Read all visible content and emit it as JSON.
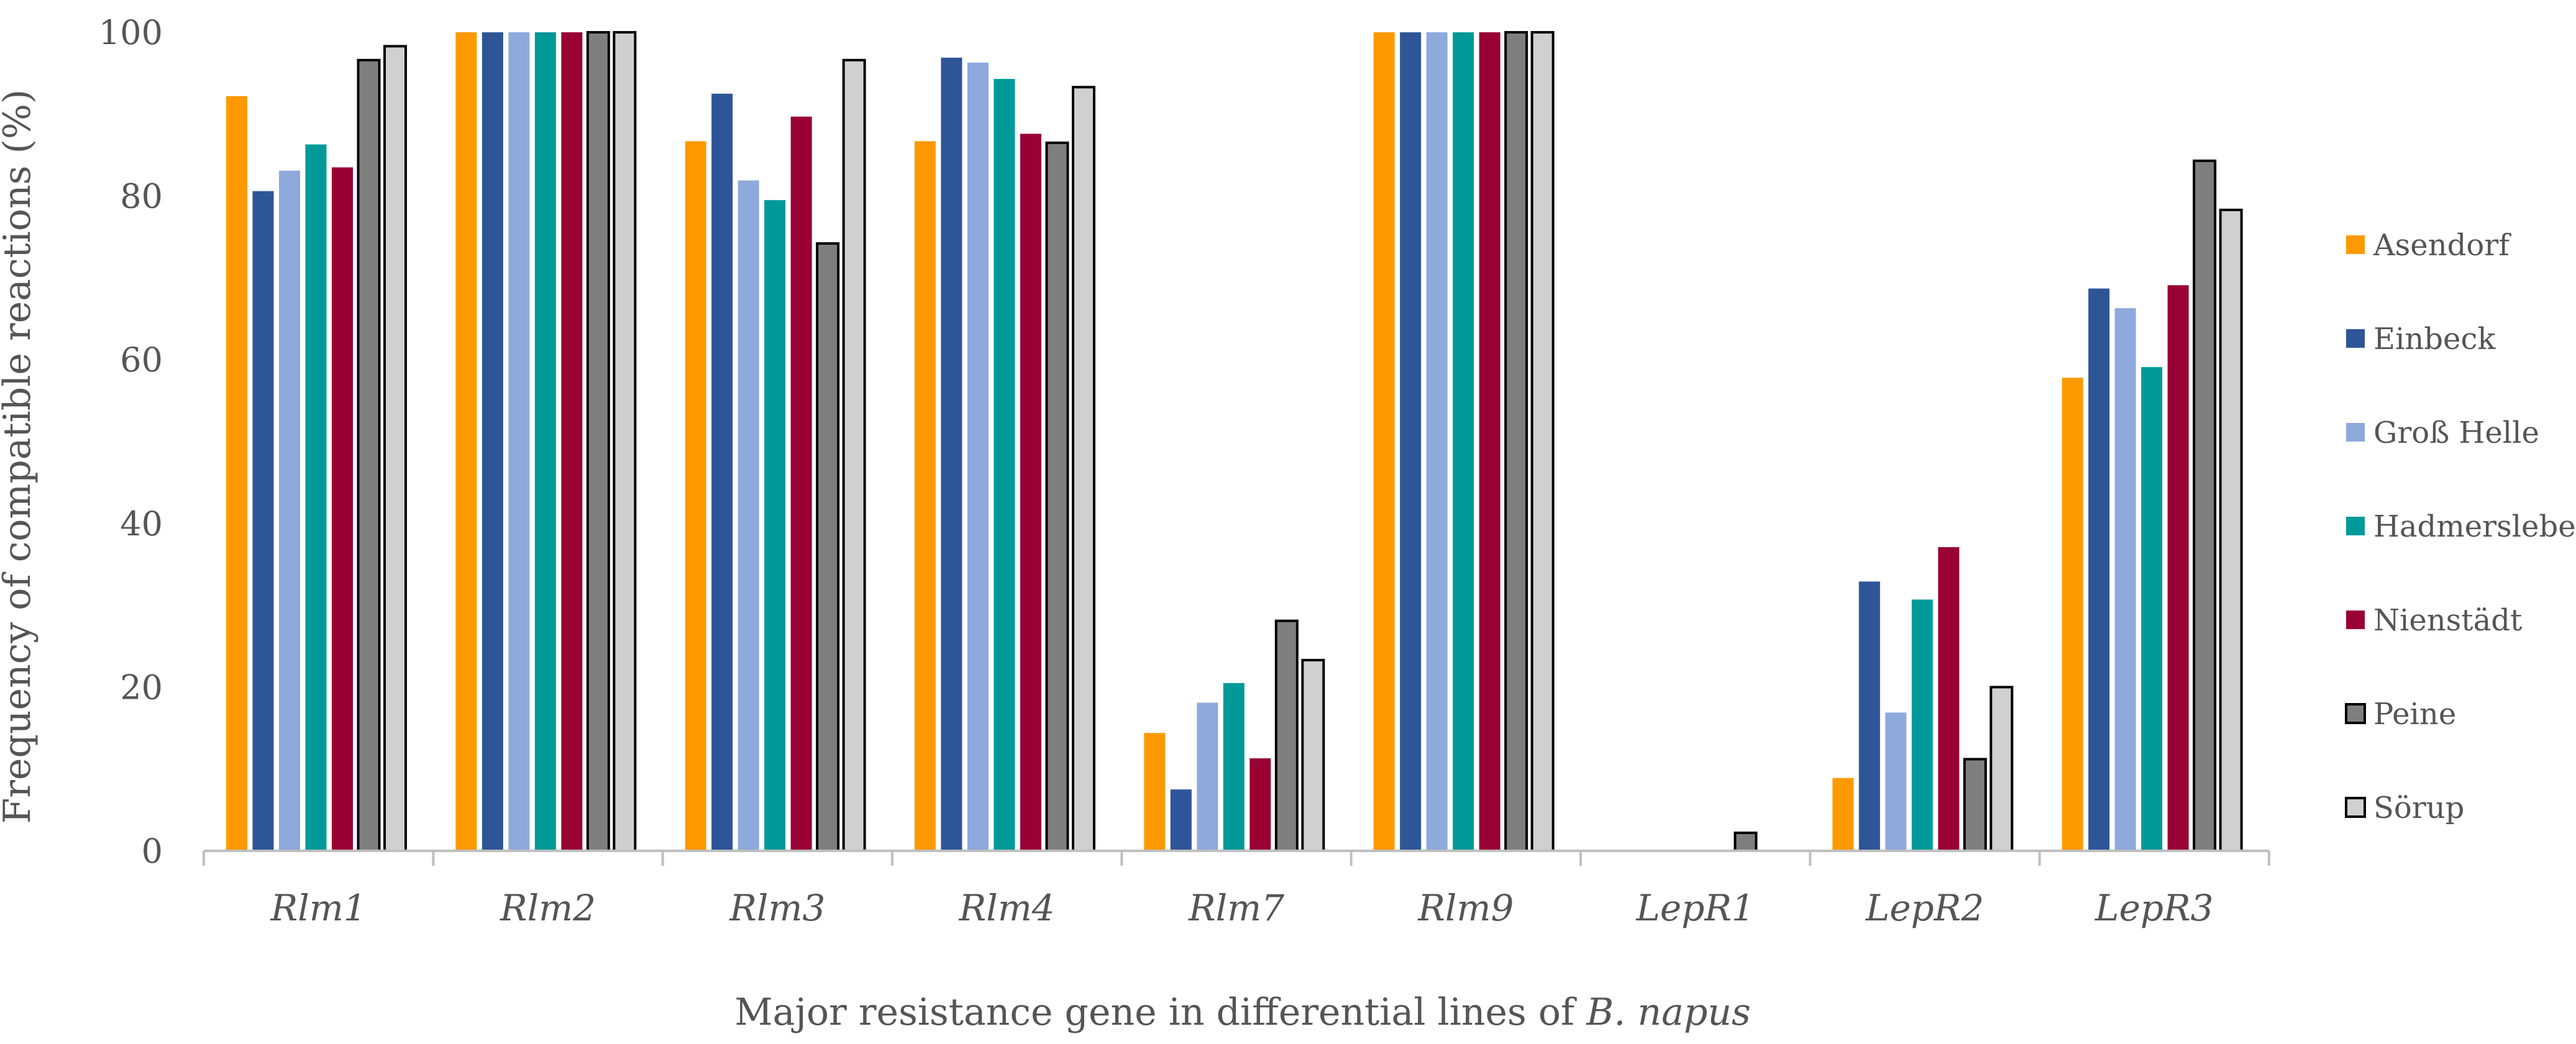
{
  "chart_data": {
    "type": "bar",
    "title": "",
    "xlabel_prefix": "Major resistance gene in differential lines of ",
    "xlabel_italic": "B. napus",
    "ylabel": "Frequency of compatible reactions (%)",
    "ylim": [
      0,
      100
    ],
    "yticks": [
      "0",
      "20",
      "40",
      "60",
      "80",
      "100"
    ],
    "grid": false,
    "legend_position": "right",
    "categories": [
      "Rlm1",
      "Rlm2",
      "Rlm3",
      "Rlm4",
      "Rlm7",
      "Rlm9",
      "LepR1",
      "LepR2",
      "LepR3"
    ],
    "series": [
      {
        "name": "Asendorf",
        "color": "#ff9900",
        "outline": false,
        "values": [
          92.2,
          100,
          86.7,
          86.7,
          14.4,
          100,
          0,
          8.9,
          57.8
        ]
      },
      {
        "name": "Einbeck",
        "color": "#2e5597",
        "outline": false,
        "values": [
          80.6,
          100,
          92.5,
          96.9,
          7.5,
          100,
          0,
          32.9,
          68.7
        ]
      },
      {
        "name": "Groß Helle",
        "color": "#8eaadc",
        "outline": false,
        "values": [
          83.1,
          100,
          81.9,
          96.3,
          18.1,
          100,
          0,
          16.9,
          66.3
        ]
      },
      {
        "name": "Hadmersleben",
        "color": "#009999",
        "outline": false,
        "values": [
          86.3,
          100,
          79.5,
          94.3,
          20.5,
          100,
          0,
          30.7,
          59.1
        ]
      },
      {
        "name": "Nienstädt",
        "color": "#990033",
        "outline": false,
        "values": [
          83.5,
          100,
          89.7,
          87.6,
          11.3,
          100,
          0,
          37.1,
          69.1
        ]
      },
      {
        "name": "Peine",
        "color": "#7f7f7f",
        "outline": true,
        "values": [
          96.6,
          100,
          74.2,
          86.5,
          28.1,
          100,
          2.2,
          11.2,
          84.3
        ]
      },
      {
        "name": "Sörup",
        "color": "#d0d0d0",
        "outline": true,
        "values": [
          98.3,
          100,
          96.6,
          93.3,
          23.3,
          100,
          0,
          20.0,
          78.3
        ]
      }
    ]
  }
}
